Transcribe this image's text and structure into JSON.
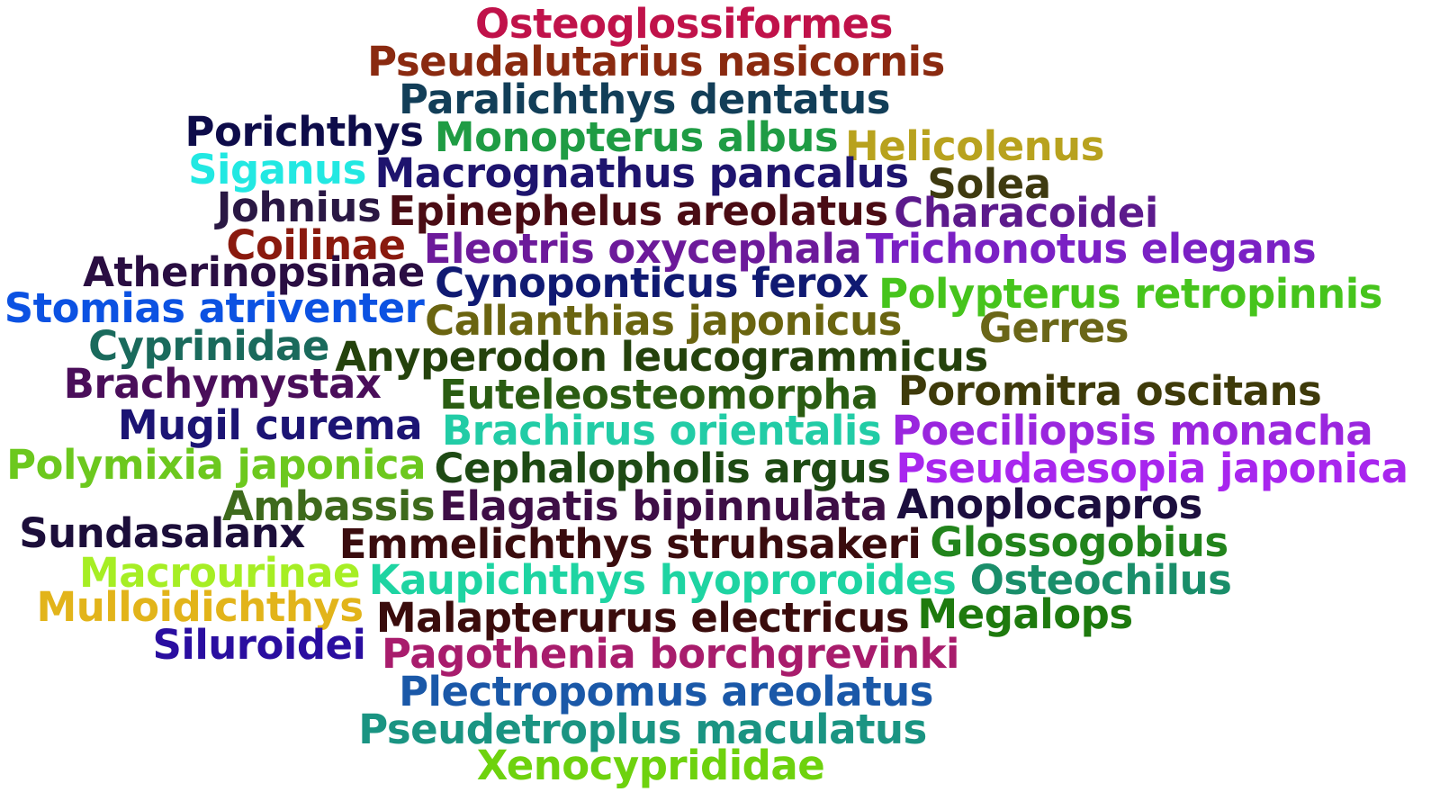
{
  "words": [
    {
      "text": "Osteoglossiformes",
      "color": "#c0124a"
    },
    {
      "text": "Pseudalutarius nasicornis",
      "color": "#8a2a10"
    },
    {
      "text": "Paralichthys dentatus",
      "color": "#123e58"
    },
    {
      "text": "Porichthys",
      "color": "#0e0c4a"
    },
    {
      "text": "Monopterus albus",
      "color": "#1f9c44"
    },
    {
      "text": "Helicolenus",
      "color": "#b8a21e"
    },
    {
      "text": "Siganus",
      "color": "#22e8e2"
    },
    {
      "text": "Macrognathus pancalus",
      "color": "#1e146e"
    },
    {
      "text": "Solea",
      "color": "#3e3a10"
    },
    {
      "text": "Johnius",
      "color": "#2a1844"
    },
    {
      "text": "Epinephelus areolatus",
      "color": "#4a0c14"
    },
    {
      "text": "Characoidei",
      "color": "#5c1a8c"
    },
    {
      "text": "Coilinae",
      "color": "#8a1a0e"
    },
    {
      "text": "Eleotris oxycephala",
      "color": "#6c1a9a"
    },
    {
      "text": "Trichonotus elegans",
      "color": "#7a20c4"
    },
    {
      "text": "Atherinopsinae",
      "color": "#2a0e42"
    },
    {
      "text": "Cynoponticus ferox",
      "color": "#101a72"
    },
    {
      "text": "Stomias atriventer",
      "color": "#0c52e2"
    },
    {
      "text": "Polypterus retropinnis",
      "color": "#46c41c"
    },
    {
      "text": "Callanthias japonicus",
      "color": "#6a6410"
    },
    {
      "text": "Gerres",
      "color": "#6a6618"
    },
    {
      "text": "Cyprinidae",
      "color": "#1a6a5c"
    },
    {
      "text": "Anyperodon leucogrammicus",
      "color": "#24420c"
    },
    {
      "text": "Brachymystax",
      "color": "#4a0e5a"
    },
    {
      "text": "Euteleosteomorpha",
      "color": "#2a5c12"
    },
    {
      "text": "Poromitra oscitans",
      "color": "#3e3a0a"
    },
    {
      "text": "Mugil curema",
      "color": "#1c1474"
    },
    {
      "text": "Brachirus orientalis",
      "color": "#22cca6"
    },
    {
      "text": "Poeciliopsis monacha",
      "color": "#9a26de"
    },
    {
      "text": "Polymixia japonica",
      "color": "#6cc81e"
    },
    {
      "text": "Cephalopholis argus",
      "color": "#1e4a14"
    },
    {
      "text": "Pseudaesopia japonica",
      "color": "#a826ee"
    },
    {
      "text": "Ambassis",
      "color": "#3e6a1c"
    },
    {
      "text": "Elagatis bipinnulata",
      "color": "#3e0e46"
    },
    {
      "text": "Anoplocapros",
      "color": "#1c0e3e"
    },
    {
      "text": "Sundasalanx",
      "color": "#1c0e3a"
    },
    {
      "text": "Emmelichthys struhsakeri",
      "color": "#3a0c0e"
    },
    {
      "text": "Glossogobius",
      "color": "#22841c"
    },
    {
      "text": "Macrourinae",
      "color": "#a6ee24"
    },
    {
      "text": "Kaupichthys hyoproroides",
      "color": "#1ed4a2"
    },
    {
      "text": "Osteochilus",
      "color": "#1a8e6a"
    },
    {
      "text": "Mulloidichthys",
      "color": "#e2b41a"
    },
    {
      "text": "Malapterurus electricus",
      "color": "#3a0c0c"
    },
    {
      "text": "Megalops",
      "color": "#1e7a0e"
    },
    {
      "text": "Siluroidei",
      "color": "#2a0ea0"
    },
    {
      "text": "Pagothenia borchgrevinki",
      "color": "#a81c6c"
    },
    {
      "text": "Plectropomus areolatus",
      "color": "#1a58a8"
    },
    {
      "text": "Pseudetroplus maculatus",
      "color": "#1a9482"
    },
    {
      "text": "Xenocyprididae",
      "color": "#6ed20e"
    }
  ]
}
